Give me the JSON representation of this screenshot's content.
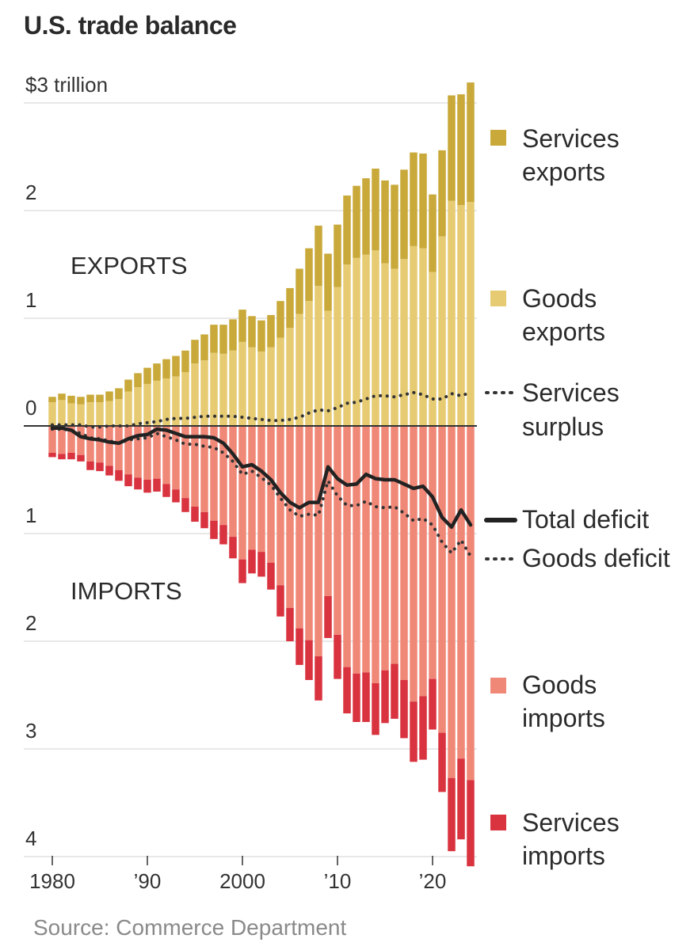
{
  "title": "U.S. trade balance",
  "source": "Source: Commerce Department",
  "colors": {
    "services_exports": "#c9a93a",
    "goods_exports": "#e6cb72",
    "goods_imports": "#f08878",
    "services_imports": "#d8333f",
    "line": "#222222",
    "grid": "#d9d9d9"
  },
  "sections": {
    "exports": "EXPORTS",
    "imports": "IMPORTS"
  },
  "legend": {
    "services_exports": [
      "Services",
      "exports"
    ],
    "goods_exports": [
      "Goods",
      "exports"
    ],
    "services_surplus": [
      "Services",
      "surplus"
    ],
    "total_deficit": [
      "Total deficit"
    ],
    "goods_deficit": [
      "Goods deficit"
    ],
    "goods_imports": [
      "Goods",
      "imports"
    ],
    "services_imports": [
      "Services",
      "imports"
    ]
  },
  "chart_data": {
    "type": "bar",
    "title": "U.S. trade balance",
    "unit": "trillion $",
    "ylim": [
      -4,
      3
    ],
    "y_tick_labels": [
      {
        "value": 3,
        "label": "$3 trillion"
      },
      {
        "value": 2,
        "label": "2"
      },
      {
        "value": 1,
        "label": "1"
      },
      {
        "value": 0,
        "label": "0"
      },
      {
        "value": -1,
        "label": "1"
      },
      {
        "value": -2,
        "label": "2"
      },
      {
        "value": -3,
        "label": "3"
      },
      {
        "value": -4,
        "label": "4"
      }
    ],
    "x_tick_labels": [
      {
        "value": 1980,
        "label": "1980"
      },
      {
        "value": 1990,
        "label": "’90"
      },
      {
        "value": 2000,
        "label": "2000"
      },
      {
        "value": 2010,
        "label": "’10"
      },
      {
        "value": 2020,
        "label": "’20"
      }
    ],
    "years": [
      1980,
      1981,
      1982,
      1983,
      1984,
      1985,
      1986,
      1987,
      1988,
      1989,
      1990,
      1991,
      1992,
      1993,
      1994,
      1995,
      1996,
      1997,
      1998,
      1999,
      2000,
      2001,
      2002,
      2003,
      2004,
      2005,
      2006,
      2007,
      2008,
      2009,
      2010,
      2011,
      2012,
      2013,
      2014,
      2015,
      2016,
      2017,
      2018,
      2019,
      2020,
      2021,
      2022,
      2023,
      2024
    ],
    "series": [
      {
        "name": "Goods exports",
        "values": [
          0.22,
          0.24,
          0.21,
          0.2,
          0.22,
          0.22,
          0.23,
          0.25,
          0.32,
          0.36,
          0.39,
          0.42,
          0.44,
          0.46,
          0.5,
          0.58,
          0.61,
          0.68,
          0.67,
          0.7,
          0.78,
          0.73,
          0.69,
          0.73,
          0.82,
          0.91,
          1.04,
          1.16,
          1.3,
          1.07,
          1.29,
          1.5,
          1.56,
          1.59,
          1.63,
          1.51,
          1.46,
          1.55,
          1.67,
          1.65,
          1.43,
          1.76,
          2.09,
          2.05,
          2.08
        ]
      },
      {
        "name": "Services exports",
        "values": [
          0.05,
          0.06,
          0.07,
          0.07,
          0.07,
          0.07,
          0.09,
          0.1,
          0.11,
          0.13,
          0.15,
          0.16,
          0.18,
          0.19,
          0.2,
          0.22,
          0.24,
          0.26,
          0.27,
          0.29,
          0.3,
          0.29,
          0.29,
          0.3,
          0.34,
          0.37,
          0.42,
          0.49,
          0.56,
          0.53,
          0.58,
          0.64,
          0.67,
          0.71,
          0.76,
          0.77,
          0.78,
          0.83,
          0.87,
          0.88,
          0.72,
          0.8,
          0.98,
          1.03,
          1.11
        ]
      },
      {
        "name": "Goods imports",
        "values": [
          -0.25,
          -0.26,
          -0.25,
          -0.27,
          -0.33,
          -0.34,
          -0.37,
          -0.41,
          -0.45,
          -0.48,
          -0.5,
          -0.49,
          -0.54,
          -0.59,
          -0.67,
          -0.75,
          -0.8,
          -0.88,
          -0.92,
          -1.03,
          -1.24,
          -1.15,
          -1.17,
          -1.27,
          -1.48,
          -1.69,
          -1.88,
          -1.99,
          -2.14,
          -1.58,
          -1.94,
          -2.24,
          -2.3,
          -2.29,
          -2.39,
          -2.27,
          -2.21,
          -2.36,
          -2.56,
          -2.51,
          -2.35,
          -2.85,
          -3.27,
          -3.09,
          -3.29
        ]
      },
      {
        "name": "Services imports",
        "values": [
          -0.04,
          -0.05,
          -0.06,
          -0.06,
          -0.08,
          -0.08,
          -0.09,
          -0.1,
          -0.11,
          -0.11,
          -0.12,
          -0.12,
          -0.12,
          -0.12,
          -0.13,
          -0.14,
          -0.15,
          -0.17,
          -0.18,
          -0.2,
          -0.22,
          -0.22,
          -0.23,
          -0.25,
          -0.29,
          -0.31,
          -0.34,
          -0.37,
          -0.41,
          -0.39,
          -0.41,
          -0.43,
          -0.45,
          -0.46,
          -0.48,
          -0.49,
          -0.51,
          -0.54,
          -0.56,
          -0.59,
          -0.47,
          -0.55,
          -0.68,
          -0.75,
          -0.8
        ]
      },
      {
        "name": "Services surplus",
        "style": "dotted",
        "values": [
          0.01,
          0.01,
          0.01,
          0.01,
          -0.01,
          -0.01,
          0.0,
          0.0,
          0.0,
          0.02,
          0.03,
          0.04,
          0.06,
          0.07,
          0.07,
          0.08,
          0.09,
          0.09,
          0.09,
          0.09,
          0.08,
          0.07,
          0.06,
          0.05,
          0.05,
          0.06,
          0.08,
          0.12,
          0.15,
          0.14,
          0.17,
          0.21,
          0.22,
          0.25,
          0.28,
          0.28,
          0.27,
          0.29,
          0.31,
          0.29,
          0.25,
          0.25,
          0.3,
          0.28,
          0.31
        ]
      },
      {
        "name": "Total deficit",
        "style": "solid",
        "values": [
          -0.02,
          -0.02,
          -0.04,
          -0.1,
          -0.12,
          -0.13,
          -0.15,
          -0.16,
          -0.12,
          -0.09,
          -0.08,
          -0.03,
          -0.04,
          -0.07,
          -0.1,
          -0.1,
          -0.1,
          -0.11,
          -0.16,
          -0.26,
          -0.38,
          -0.36,
          -0.42,
          -0.5,
          -0.62,
          -0.71,
          -0.76,
          -0.71,
          -0.71,
          -0.38,
          -0.49,
          -0.55,
          -0.54,
          -0.45,
          -0.49,
          -0.5,
          -0.5,
          -0.54,
          -0.58,
          -0.56,
          -0.66,
          -0.85,
          -0.94,
          -0.78,
          -0.92
        ]
      },
      {
        "name": "Goods deficit",
        "style": "dotted",
        "values": [
          -0.03,
          -0.03,
          -0.04,
          -0.07,
          -0.11,
          -0.12,
          -0.14,
          -0.16,
          -0.13,
          -0.12,
          -0.11,
          -0.07,
          -0.1,
          -0.13,
          -0.17,
          -0.17,
          -0.19,
          -0.2,
          -0.25,
          -0.33,
          -0.45,
          -0.42,
          -0.48,
          -0.55,
          -0.67,
          -0.78,
          -0.84,
          -0.82,
          -0.83,
          -0.51,
          -0.65,
          -0.74,
          -0.74,
          -0.7,
          -0.75,
          -0.76,
          -0.75,
          -0.81,
          -0.88,
          -0.86,
          -0.92,
          -1.08,
          -1.18,
          -1.06,
          -1.21
        ]
      }
    ],
    "grid": true,
    "legend_position": "right"
  }
}
